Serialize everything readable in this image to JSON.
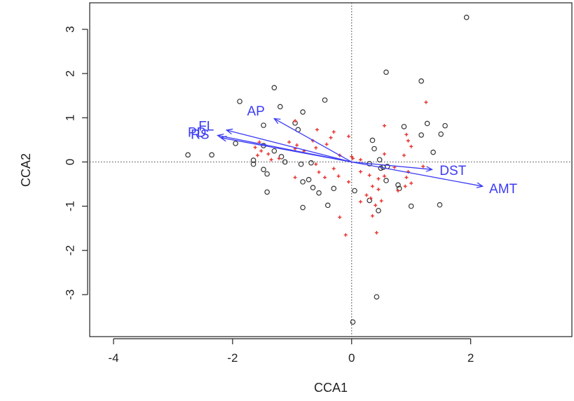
{
  "chart_data": {
    "type": "scatter",
    "title": "",
    "xlabel": "CCA1",
    "ylabel": "CCA2",
    "xlim": [
      -4.4,
      3.7
    ],
    "ylim": [
      -3.95,
      3.6
    ],
    "xticks": [
      -4,
      -2,
      0,
      2
    ],
    "yticks": [
      -3,
      -2,
      -1,
      0,
      1,
      2,
      3
    ],
    "xtick_labels": [
      "-4",
      "-2",
      "0",
      "2"
    ],
    "ytick_labels": [
      "-3",
      "-2",
      "-1",
      "0",
      "1",
      "2",
      "3"
    ],
    "grid": false,
    "zero_lines": true,
    "colors": {
      "sites": "#333333",
      "species": "#e8312c",
      "biplot": "#3b3bf5"
    },
    "series": [
      {
        "marker": "open-circle",
        "points": [
          [
            1.93,
            3.27
          ],
          [
            0.58,
            2.03
          ],
          [
            1.17,
            1.83
          ],
          [
            -1.3,
            1.68
          ],
          [
            -1.88,
            1.37
          ],
          [
            -0.45,
            1.4
          ],
          [
            -1.2,
            1.25
          ],
          [
            -0.82,
            1.13
          ],
          [
            -0.95,
            0.88
          ],
          [
            -1.48,
            0.83
          ],
          [
            -0.9,
            0.73
          ],
          [
            1.27,
            0.87
          ],
          [
            1.57,
            0.82
          ],
          [
            0.88,
            0.8
          ],
          [
            1.5,
            0.63
          ],
          [
            1.17,
            0.61
          ],
          [
            0.35,
            0.49
          ],
          [
            0.38,
            0.3
          ],
          [
            1.37,
            0.22
          ],
          [
            0.47,
            0.05
          ],
          [
            -2.75,
            0.16
          ],
          [
            -2.35,
            0.16
          ],
          [
            -1.95,
            0.42
          ],
          [
            -1.48,
            0.37
          ],
          [
            -1.3,
            0.25
          ],
          [
            -1.18,
            0.12
          ],
          [
            -1.65,
            0.04
          ],
          [
            -1.65,
            -0.05
          ],
          [
            -1.12,
            0.0
          ],
          [
            -0.85,
            -0.05
          ],
          [
            -0.68,
            -0.02
          ],
          [
            -1.48,
            -0.17
          ],
          [
            -1.42,
            -0.27
          ],
          [
            0.49,
            -0.14
          ],
          [
            0.53,
            -0.12
          ],
          [
            0.6,
            -0.1
          ],
          [
            0.3,
            -0.04
          ],
          [
            -0.72,
            -0.4
          ],
          [
            -0.82,
            -0.45
          ],
          [
            -0.65,
            -0.58
          ],
          [
            -0.55,
            -0.7
          ],
          [
            -0.3,
            -0.6
          ],
          [
            0.05,
            -0.65
          ],
          [
            0.58,
            -0.42
          ],
          [
            0.78,
            -0.52
          ],
          [
            0.8,
            -0.6
          ],
          [
            -1.42,
            -0.68
          ],
          [
            -0.82,
            -1.03
          ],
          [
            -0.4,
            -0.98
          ],
          [
            0.3,
            -0.87
          ],
          [
            0.45,
            -1.1
          ],
          [
            1.0,
            -1.0
          ],
          [
            1.48,
            -0.97
          ],
          [
            0.42,
            -3.05
          ],
          [
            0.02,
            -3.62
          ]
        ]
      },
      {
        "marker": "plus",
        "points": [
          [
            1.25,
            1.35
          ],
          [
            -0.95,
            0.93
          ],
          [
            -0.58,
            0.73
          ],
          [
            -0.3,
            0.68
          ],
          [
            -0.05,
            0.58
          ],
          [
            -0.35,
            0.55
          ],
          [
            -0.65,
            0.48
          ],
          [
            -0.42,
            0.4
          ],
          [
            -0.6,
            0.32
          ],
          [
            -0.8,
            0.25
          ],
          [
            -1.55,
            0.45
          ],
          [
            -1.62,
            0.33
          ],
          [
            -1.52,
            0.25
          ],
          [
            -1.4,
            0.18
          ],
          [
            -1.58,
            0.15
          ],
          [
            -1.35,
            0.05
          ],
          [
            -1.22,
            0.08
          ],
          [
            -0.95,
            0.3
          ],
          [
            -0.92,
            0.38
          ],
          [
            -1.05,
            0.45
          ],
          [
            -0.2,
            0.15
          ],
          [
            0.0,
            0.12
          ],
          [
            0.15,
            0.05
          ],
          [
            0.55,
            0.82
          ],
          [
            0.92,
            0.62
          ],
          [
            0.95,
            0.48
          ],
          [
            1.0,
            0.35
          ],
          [
            0.88,
            0.15
          ],
          [
            0.55,
            0.18
          ],
          [
            -0.6,
            -0.05
          ],
          [
            -0.55,
            -0.23
          ],
          [
            -0.3,
            -0.15
          ],
          [
            -0.95,
            -0.35
          ],
          [
            -0.45,
            -0.35
          ],
          [
            -0.05,
            -0.45
          ],
          [
            0.3,
            -0.3
          ],
          [
            0.45,
            -0.38
          ],
          [
            0.55,
            -0.32
          ],
          [
            0.15,
            -0.22
          ],
          [
            0.35,
            -0.55
          ],
          [
            0.45,
            -0.62
          ],
          [
            0.25,
            -0.75
          ],
          [
            0.15,
            -0.9
          ],
          [
            0.32,
            -0.82
          ],
          [
            -0.2,
            -1.25
          ],
          [
            -0.1,
            -1.65
          ],
          [
            0.35,
            -1.22
          ],
          [
            0.42,
            -1.6
          ],
          [
            0.78,
            -0.65
          ],
          [
            0.9,
            -0.55
          ],
          [
            0.92,
            -0.35
          ],
          [
            1.0,
            -0.48
          ],
          [
            0.72,
            -0.12
          ],
          [
            0.95,
            -0.22
          ],
          [
            0.5,
            -0.88
          ],
          [
            0.4,
            -0.98
          ],
          [
            1.2,
            -0.1
          ],
          [
            0.02,
            0.08
          ],
          [
            -0.22,
            -0.32
          ]
        ]
      }
    ],
    "biplot_arrows": [
      {
        "label": "AP",
        "x": -1.3,
        "y": 0.98
      },
      {
        "label": "FL",
        "x": -2.1,
        "y": 0.72
      },
      {
        "label": "RS",
        "x": -2.2,
        "y": 0.55
      },
      {
        "label": "PD",
        "x": -2.25,
        "y": 0.6
      },
      {
        "label": "DST",
        "x": 1.35,
        "y": -0.17
      },
      {
        "label": "AMT",
        "x": 2.2,
        "y": -0.55
      }
    ]
  }
}
